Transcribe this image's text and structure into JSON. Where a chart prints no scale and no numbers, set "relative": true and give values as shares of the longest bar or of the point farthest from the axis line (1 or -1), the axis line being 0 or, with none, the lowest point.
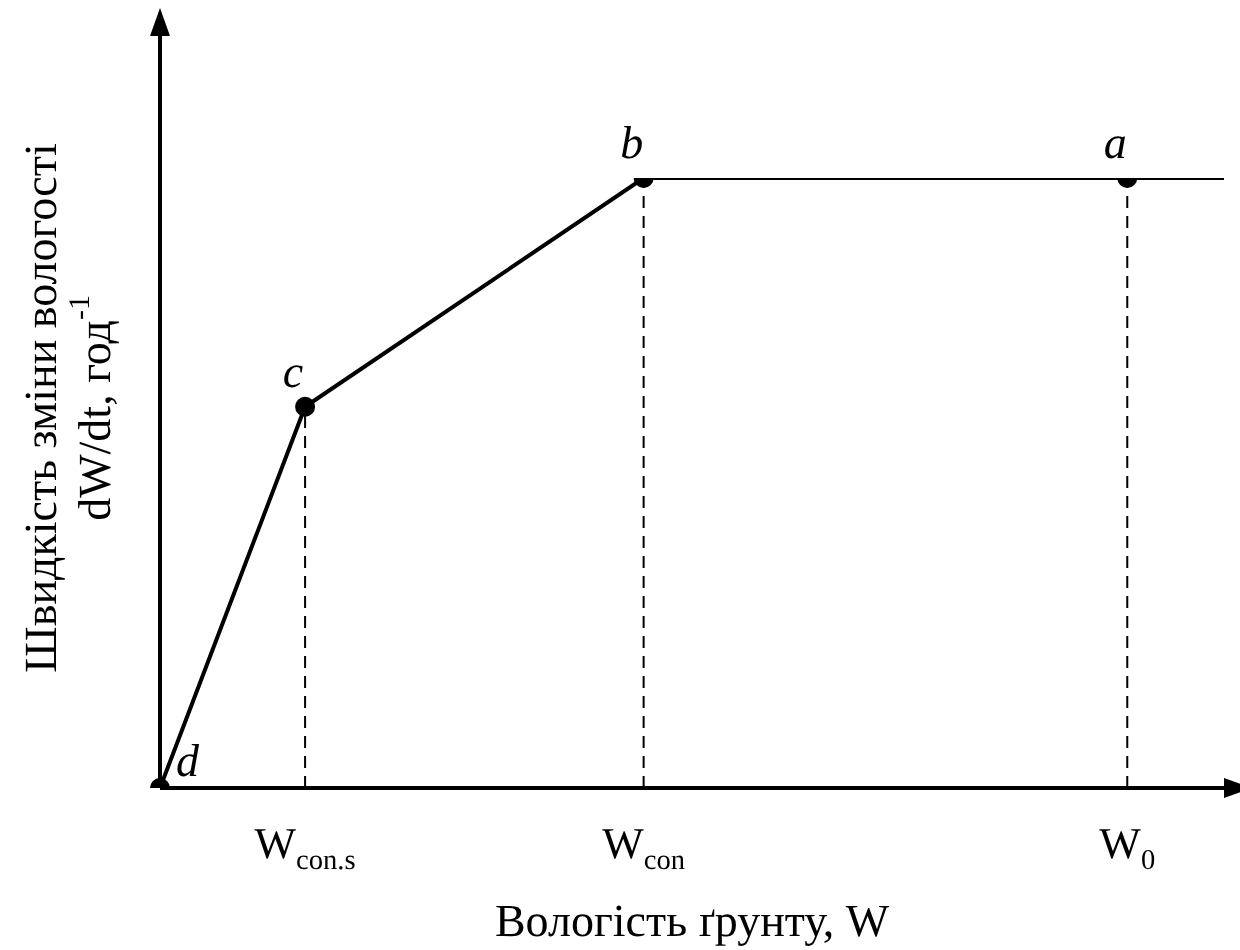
{
  "chart_data": {
    "type": "line",
    "relative": true,
    "xlabel": "Вологість ґрунту, W",
    "ylabel": "Швидкість зміни вологості\ndW/dt, год$^{-1}$",
    "categories": [
      null,
      null,
      null,
      "W$_{con.s}$",
      null,
      null,
      null,
      null,
      null,
      null,
      "W$_{con}$",
      null,
      null,
      null,
      null,
      null,
      null,
      null,
      null,
      null,
      "W$_{0}$",
      null,
      null
    ],
    "series": [
      {
        "color": "#000000",
        "values": [
          0,
          null,
          null,
          0.625,
          null,
          null,
          null,
          null,
          null,
          null,
          1,
          null,
          null,
          null,
          null,
          null,
          null,
          null,
          null,
          null,
          1,
          null,
          null
        ],
        "marker": "circle"
      },
      {
        "color": "#000000",
        "values": [
          null,
          null,
          null,
          null,
          null,
          null,
          null,
          null,
          null,
          null,
          null,
          null,
          null,
          null,
          null,
          null,
          null,
          null,
          null,
          null,
          1,
          null,
          1
        ]
      }
    ],
    "ref_lines": [
      {
        "axis": "x",
        "value": "W$_{con.s}$",
        "line_style": "dashed",
        "color": "#000000"
      },
      {
        "axis": "x",
        "value": "W$_{con}$",
        "line_style": "dashed",
        "color": "#000000"
      },
      {
        "axis": "x",
        "value": "W$_{0}$",
        "line_style": "dashed",
        "color": "#000000"
      }
    ],
    "annotations": [
      "d",
      {
        "text": "c",
        "x": "W$_{con.s}$",
        "y": 0.625
      },
      {
        "text": "b",
        "x": "W$_{con}$",
        "y": 1
      },
      {
        "text": "a",
        "x": "W$_{0}$",
        "y": 1
      }
    ]
  }
}
